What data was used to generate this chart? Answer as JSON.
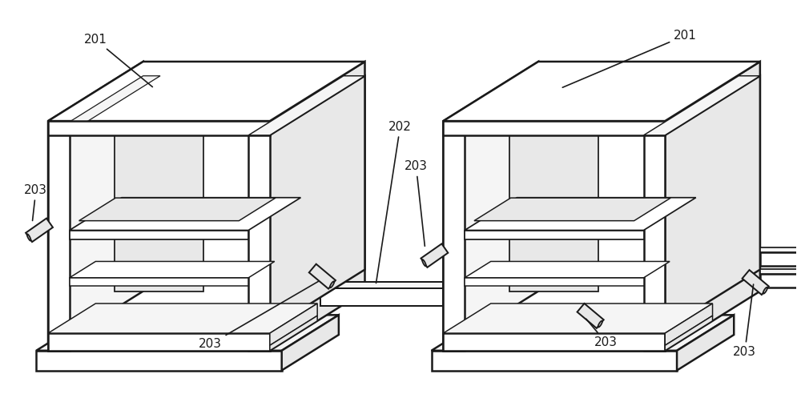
{
  "bg_color": "#ffffff",
  "line_color": "#1a1a1a",
  "fill_white": "#ffffff",
  "fill_light": "#f5f5f5",
  "fill_mid": "#e8e8e8",
  "fill_dark": "#d0d0d0",
  "fill_darker": "#b8b8b8",
  "line_width": 1.8,
  "fig_width": 10.0,
  "fig_height": 4.92,
  "dpi": 100,
  "label_fontsize": 11
}
